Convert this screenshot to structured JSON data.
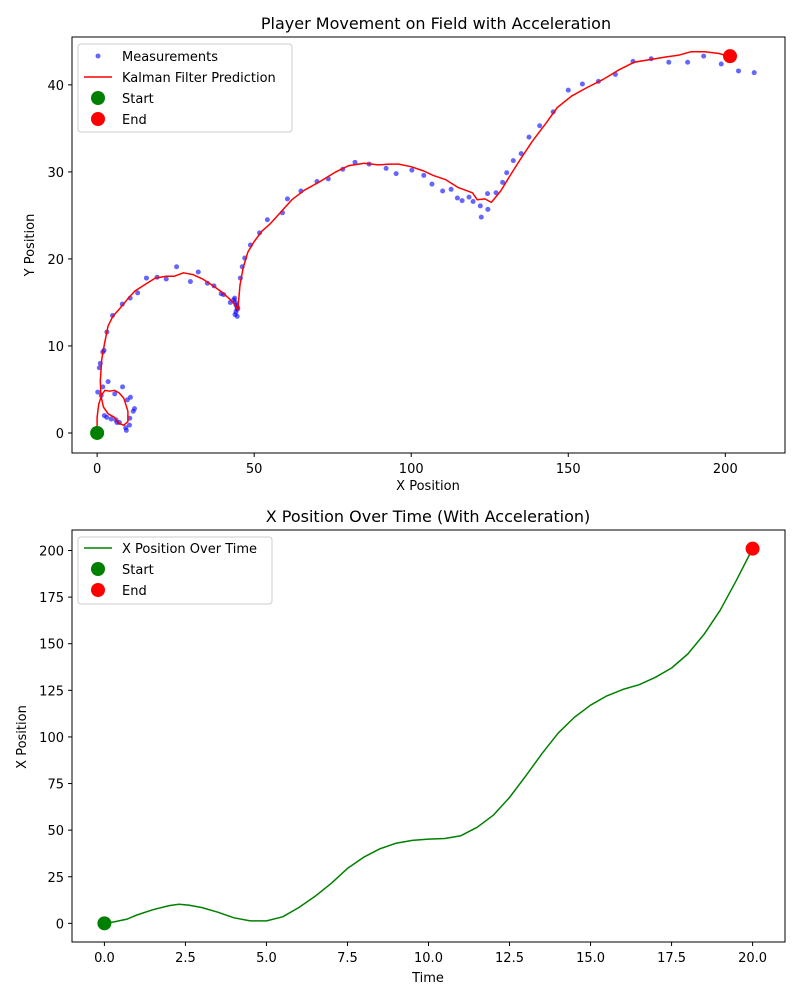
{
  "colors": {
    "measurements": "#0000ff",
    "kalman": "#ff0000",
    "x_over_time": "#008000",
    "start": "#008000",
    "end": "#ff0000"
  },
  "chart_data": [
    {
      "type": "scatter",
      "title": "Player Movement on Field with Acceleration",
      "xlabel": "X Position",
      "ylabel": "Y Position",
      "xlim": [
        -8,
        219
      ],
      "ylim": [
        -2.3,
        45.5
      ],
      "xticks": [
        0,
        50,
        100,
        150,
        200
      ],
      "yticks": [
        0,
        10,
        20,
        30,
        40
      ],
      "grid": false,
      "legend_position": "top-left",
      "legend": [
        "Measurements",
        "Kalman Filter Prediction",
        "Start",
        "End"
      ],
      "series": [
        {
          "name": "Measurements",
          "kind": "points",
          "points": [
            [
              0.2,
              4.7
            ],
            [
              1.3,
              4.3
            ],
            [
              1.8,
              5.3
            ],
            [
              2.3,
              2.0
            ],
            [
              3.1,
              1.8
            ],
            [
              3.5,
              5.9
            ],
            [
              4.5,
              1.6
            ],
            [
              5.6,
              4.5
            ],
            [
              6.0,
              1.5
            ],
            [
              6.3,
              1.2
            ],
            [
              7.1,
              1.2
            ],
            [
              8.1,
              5.3
            ],
            [
              9.1,
              0.6
            ],
            [
              9.3,
              0.3
            ],
            [
              9.6,
              3.8
            ],
            [
              10.3,
              0.9
            ],
            [
              10.6,
              4.1
            ],
            [
              10.4,
              1.7
            ],
            [
              11.5,
              2.5
            ],
            [
              11.9,
              2.8
            ],
            [
              0.7,
              7.5
            ],
            [
              1.0,
              8.0
            ],
            [
              1.8,
              9.3
            ],
            [
              2.2,
              9.5
            ],
            [
              3.1,
              11.6
            ],
            [
              4.9,
              13.5
            ],
            [
              8.0,
              14.8
            ],
            [
              10.5,
              15.5
            ],
            [
              12.9,
              16.1
            ],
            [
              15.7,
              17.8
            ],
            [
              19.1,
              17.9
            ],
            [
              22.0,
              17.7
            ],
            [
              25.3,
              19.1
            ],
            [
              29.7,
              17.4
            ],
            [
              32.2,
              18.5
            ],
            [
              35.1,
              17.2
            ],
            [
              37.2,
              16.9
            ],
            [
              39.5,
              16.0
            ],
            [
              40.3,
              15.9
            ],
            [
              42.4,
              15.0
            ],
            [
              43.5,
              15.3
            ],
            [
              43.8,
              15.5
            ],
            [
              44.0,
              15.0
            ],
            [
              44.2,
              14.7
            ],
            [
              44.5,
              14.2
            ],
            [
              44.6,
              14.5
            ],
            [
              44.8,
              14.3
            ],
            [
              44.2,
              13.9
            ],
            [
              43.9,
              13.6
            ],
            [
              44.6,
              13.4
            ],
            [
              45.6,
              17.8
            ],
            [
              46.2,
              19.1
            ],
            [
              47.0,
              20.1
            ],
            [
              48.8,
              21.6
            ],
            [
              51.7,
              23.0
            ],
            [
              54.2,
              24.5
            ],
            [
              59.0,
              25.3
            ],
            [
              60.6,
              26.9
            ],
            [
              64.9,
              27.8
            ],
            [
              70.0,
              28.9
            ],
            [
              73.6,
              29.2
            ],
            [
              78.2,
              30.3
            ],
            [
              82.1,
              31.1
            ],
            [
              86.6,
              30.9
            ],
            [
              92.0,
              30.4
            ],
            [
              95.2,
              29.8
            ],
            [
              100.2,
              30.2
            ],
            [
              104.0,
              29.6
            ],
            [
              106.6,
              28.6
            ],
            [
              110.0,
              27.8
            ],
            [
              112.7,
              28.0
            ],
            [
              114.7,
              27.0
            ],
            [
              116.2,
              26.7
            ],
            [
              118.4,
              27.1
            ],
            [
              119.7,
              26.6
            ],
            [
              122.0,
              26.1
            ],
            [
              122.3,
              24.8
            ],
            [
              124.3,
              27.5
            ],
            [
              124.4,
              25.7
            ],
            [
              127.0,
              27.6
            ],
            [
              129.1,
              28.8
            ],
            [
              130.4,
              29.9
            ],
            [
              132.5,
              31.3
            ],
            [
              135.0,
              32.1
            ],
            [
              137.5,
              34.0
            ],
            [
              140.9,
              35.3
            ],
            [
              145.2,
              36.9
            ],
            [
              150.0,
              39.4
            ],
            [
              154.5,
              40.1
            ],
            [
              159.6,
              40.4
            ],
            [
              165.0,
              41.2
            ],
            [
              170.6,
              42.7
            ],
            [
              176.4,
              43.0
            ],
            [
              182.0,
              42.6
            ],
            [
              188.0,
              42.6
            ],
            [
              193.1,
              43.3
            ],
            [
              198.7,
              42.4
            ],
            [
              204.2,
              41.6
            ],
            [
              209.2,
              41.4
            ]
          ]
        },
        {
          "name": "Kalman Filter Prediction",
          "kind": "line",
          "points": [
            [
              0,
              0
            ],
            [
              0,
              1.8
            ],
            [
              0.5,
              3.3
            ],
            [
              1.5,
              4.4
            ],
            [
              2.5,
              4.9
            ],
            [
              4.0,
              4.8
            ],
            [
              5.5,
              4.9
            ],
            [
              7.0,
              4.6
            ],
            [
              8.5,
              4.0
            ],
            [
              9.8,
              2.5
            ],
            [
              9.8,
              1.3
            ],
            [
              8.5,
              0.9
            ],
            [
              7.0,
              1.1
            ],
            [
              5.5,
              1.8
            ],
            [
              3.5,
              2.2
            ],
            [
              2.0,
              3.0
            ],
            [
              1.2,
              4.3
            ],
            [
              1.0,
              6.0
            ],
            [
              1.5,
              8.5
            ],
            [
              2.3,
              10.2
            ],
            [
              3.5,
              12.3
            ],
            [
              5.0,
              13.4
            ],
            [
              7.0,
              14.2
            ],
            [
              9.5,
              15.3
            ],
            [
              12.0,
              16.3
            ],
            [
              15.0,
              17.0
            ],
            [
              18.5,
              17.8
            ],
            [
              22.0,
              18.0
            ],
            [
              24.5,
              18.0
            ],
            [
              27.5,
              18.4
            ],
            [
              30.5,
              18.2
            ],
            [
              33.5,
              17.7
            ],
            [
              37.0,
              16.9
            ],
            [
              40.0,
              16.1
            ],
            [
              42.5,
              15.3
            ],
            [
              44.0,
              14.7
            ],
            [
              44.8,
              14.1
            ],
            [
              45.5,
              17.0
            ],
            [
              46.5,
              19.0
            ],
            [
              48.0,
              20.8
            ],
            [
              50.0,
              22.0
            ],
            [
              52.5,
              23.2
            ],
            [
              55.0,
              24.0
            ],
            [
              58.0,
              25.2
            ],
            [
              62.0,
              26.8
            ],
            [
              66.0,
              27.9
            ],
            [
              71.0,
              28.9
            ],
            [
              76.0,
              30.0
            ],
            [
              80.0,
              30.7
            ],
            [
              85.0,
              31.0
            ],
            [
              89.5,
              30.8
            ],
            [
              93.0,
              30.9
            ],
            [
              96.0,
              30.9
            ],
            [
              100.0,
              30.6
            ],
            [
              104.0,
              30.1
            ],
            [
              107.0,
              29.6
            ],
            [
              111.0,
              29.1
            ],
            [
              115.0,
              28.2
            ],
            [
              119.5,
              27.6
            ],
            [
              121.0,
              26.8
            ],
            [
              123.5,
              26.9
            ],
            [
              125.5,
              26.5
            ],
            [
              128.5,
              27.8
            ],
            [
              131.5,
              29.6
            ],
            [
              135.0,
              31.6
            ],
            [
              138.5,
              33.5
            ],
            [
              142.5,
              35.4
            ],
            [
              146.5,
              37.4
            ],
            [
              151.0,
              38.7
            ],
            [
              156.0,
              39.7
            ],
            [
              161.0,
              40.6
            ],
            [
              166.0,
              41.7
            ],
            [
              171.0,
              42.6
            ],
            [
              176.0,
              42.9
            ],
            [
              181.0,
              43.2
            ],
            [
              185.0,
              43.4
            ],
            [
              189.0,
              43.8
            ],
            [
              193.5,
              43.8
            ],
            [
              198.0,
              43.6
            ],
            [
              202.0,
              43.2
            ]
          ]
        }
      ],
      "start": [
        0,
        0
      ],
      "end": [
        201.5,
        43.3
      ]
    },
    {
      "type": "line",
      "title": "X Position Over Time (With Acceleration)",
      "xlabel": "Time",
      "ylabel": "X Position",
      "xlim": [
        -1,
        21
      ],
      "ylim": [
        -10,
        211
      ],
      "xticks": [
        0.0,
        2.5,
        5.0,
        7.5,
        10.0,
        12.5,
        15.0,
        17.5,
        20.0
      ],
      "yticks": [
        0,
        25,
        50,
        75,
        100,
        125,
        150,
        175,
        200
      ],
      "grid": false,
      "legend_position": "top-left",
      "legend": [
        "X Position Over Time",
        "Start",
        "End"
      ],
      "series": [
        {
          "name": "X Position Over Time",
          "kind": "line",
          "points": [
            [
              0,
              0
            ],
            [
              0.3,
              0.8
            ],
            [
              0.7,
              2.3
            ],
            [
              1.0,
              4.5
            ],
            [
              1.5,
              7.3
            ],
            [
              2.0,
              9.5
            ],
            [
              2.3,
              10.2
            ],
            [
              2.6,
              9.8
            ],
            [
              3.0,
              8.5
            ],
            [
              3.5,
              6.0
            ],
            [
              4.0,
              3.0
            ],
            [
              4.5,
              1.3
            ],
            [
              5.0,
              1.3
            ],
            [
              5.5,
              3.5
            ],
            [
              6.0,
              8.5
            ],
            [
              6.5,
              14.5
            ],
            [
              7.0,
              21.5
            ],
            [
              7.5,
              29.5
            ],
            [
              8.0,
              35.5
            ],
            [
              8.5,
              40.0
            ],
            [
              9.0,
              43.0
            ],
            [
              9.5,
              44.5
            ],
            [
              10.0,
              45.2
            ],
            [
              10.5,
              45.5
            ],
            [
              11.0,
              47.0
            ],
            [
              11.5,
              51.5
            ],
            [
              12.0,
              58.0
            ],
            [
              12.5,
              67.5
            ],
            [
              13.0,
              79.0
            ],
            [
              13.5,
              91.0
            ],
            [
              14.0,
              102.0
            ],
            [
              14.5,
              110.5
            ],
            [
              15.0,
              117.0
            ],
            [
              15.5,
              122.0
            ],
            [
              16.0,
              125.5
            ],
            [
              16.5,
              128.0
            ],
            [
              17.0,
              132.0
            ],
            [
              17.5,
              137.0
            ],
            [
              18.0,
              144.5
            ],
            [
              18.5,
              155.0
            ],
            [
              19.0,
              168.0
            ],
            [
              19.5,
              184.0
            ],
            [
              20.0,
              201.0
            ]
          ]
        }
      ],
      "start": [
        0,
        0
      ],
      "end": [
        20,
        201
      ]
    }
  ]
}
